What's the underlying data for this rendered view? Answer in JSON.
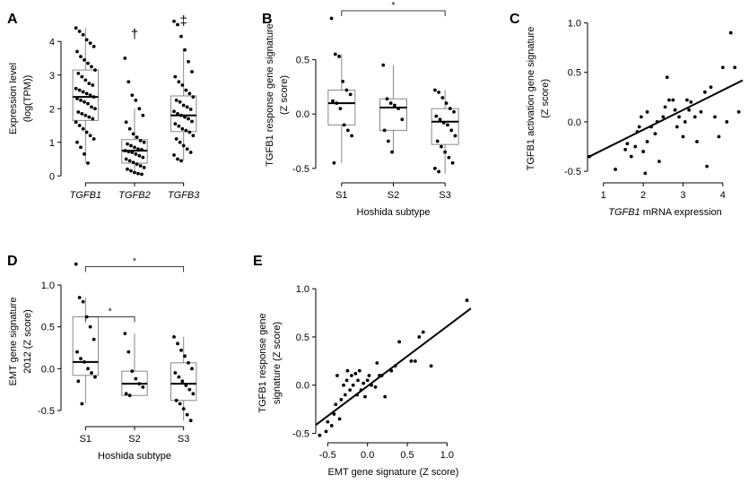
{
  "chart_data": [
    {
      "panel": "A",
      "type": "box",
      "ylabel": "Expression level (log(TPM))",
      "ylabel_lines": [
        "Expression level",
        "(log(TPM))"
      ],
      "yticks": [
        0,
        1,
        2,
        3,
        4
      ],
      "ylim": [
        -0.1,
        4.7
      ],
      "categories": [
        "TGFB1",
        "TGFB2",
        "TGFB3"
      ],
      "category_style": "italic",
      "boxes": [
        {
          "name": "TGFB1",
          "q1": 1.65,
          "median": 2.35,
          "q3": 3.15,
          "whisker_low": 0.38,
          "whisker_high": 4.4,
          "points": [
            4.4,
            4.3,
            4.2,
            4.05,
            3.95,
            3.85,
            3.7,
            3.55,
            3.45,
            3.35,
            3.25,
            3.15,
            3.05,
            2.95,
            2.85,
            2.75,
            2.7,
            2.6,
            2.55,
            2.5,
            2.45,
            2.4,
            2.35,
            2.3,
            2.25,
            2.2,
            2.15,
            2.05,
            2.0,
            1.9,
            1.85,
            1.8,
            1.75,
            1.7,
            1.6,
            1.5,
            1.4,
            1.3,
            1.2,
            1.1,
            1.0,
            0.85,
            0.65,
            0.38
          ]
        },
        {
          "name": "TGFB2",
          "q1": 0.38,
          "median": 0.75,
          "q3": 1.08,
          "whisker_low": 0.05,
          "whisker_high": 2.0,
          "points": [
            3.5,
            2.8,
            2.4,
            2.25,
            2.0,
            1.8,
            1.6,
            1.4,
            1.25,
            1.15,
            1.05,
            1.0,
            0.95,
            0.9,
            0.85,
            0.8,
            0.78,
            0.75,
            0.72,
            0.7,
            0.65,
            0.6,
            0.55,
            0.5,
            0.45,
            0.4,
            0.35,
            0.3,
            0.25,
            0.2,
            0.15,
            0.1,
            0.07,
            0.05
          ]
        },
        {
          "name": "TGFB3",
          "q1": 1.32,
          "median": 1.8,
          "q3": 2.38,
          "whisker_low": 0.45,
          "whisker_high": 3.75,
          "points": [
            4.6,
            4.5,
            4.15,
            3.75,
            3.4,
            3.1,
            2.95,
            2.8,
            2.7,
            2.55,
            2.45,
            2.35,
            2.25,
            2.2,
            2.1,
            2.05,
            1.98,
            1.92,
            1.85,
            1.8,
            1.75,
            1.7,
            1.62,
            1.55,
            1.48,
            1.4,
            1.35,
            1.3,
            1.2,
            1.1,
            1.0,
            0.9,
            0.8,
            0.7,
            0.62,
            0.5,
            0.45
          ]
        }
      ],
      "annotations": [
        {
          "category": "TGFB2",
          "text": "†",
          "value": 4.25
        },
        {
          "category": "TGFB3",
          "text": "‡",
          "value": 4.65
        }
      ]
    },
    {
      "panel": "B",
      "type": "box",
      "ylabel": "TGFB1 response gene signature (Z score)",
      "ylabel_lines": [
        "TGFB1 response gene signature",
        "(Z score)"
      ],
      "xlabel": "Hoshida subtype",
      "yticks": [
        -0.5,
        0.0,
        0.5
      ],
      "ytick_labels": [
        "-0.5",
        "0.0",
        "0.5"
      ],
      "ylim": [
        -0.6,
        0.95
      ],
      "categories": [
        "S1",
        "S2",
        "S3"
      ],
      "boxes": [
        {
          "name": "S1",
          "q1": -0.1,
          "median": 0.1,
          "q3": 0.22,
          "whisker_low": -0.45,
          "whisker_high": 0.55,
          "points": [
            0.88,
            0.55,
            0.53,
            0.3,
            0.22,
            0.18,
            0.12,
            0.1,
            0.05,
            -0.1,
            -0.15,
            -0.2,
            -0.45
          ]
        },
        {
          "name": "S2",
          "q1": -0.15,
          "median": 0.06,
          "q3": 0.14,
          "whisker_low": -0.35,
          "whisker_high": 0.45,
          "points": [
            0.45,
            0.14,
            0.1,
            0.08,
            0.05,
            -0.05,
            -0.15,
            -0.25,
            -0.35
          ]
        },
        {
          "name": "S3",
          "q1": -0.28,
          "median": -0.07,
          "q3": 0.05,
          "whisker_low": -0.55,
          "whisker_high": 0.22,
          "points": [
            0.22,
            0.2,
            0.15,
            0.1,
            0.05,
            0.02,
            -0.02,
            -0.05,
            -0.08,
            -0.1,
            -0.15,
            -0.2,
            -0.25,
            -0.3,
            -0.35,
            -0.4,
            -0.45,
            -0.5,
            -0.53
          ]
        }
      ],
      "brackets": [
        {
          "from": "S1",
          "to": "S3",
          "label": "*",
          "value": 0.95
        }
      ]
    },
    {
      "panel": "C",
      "type": "scatter",
      "ylabel": "TGFB1 activation gene signature (Z score)",
      "ylabel_lines": [
        "TGFB1 activation gene signature",
        "(Z score)"
      ],
      "xlabel": "TGFB1 mRNA expression",
      "xlabel_italic_part": "TGFB1",
      "xlabel_rest": " mRNA expression",
      "xticks": [
        1,
        2,
        3,
        4
      ],
      "yticks": [
        -0.5,
        0.0,
        0.5,
        1.0
      ],
      "ytick_labels": [
        "-0.5",
        "0.0",
        "0.5",
        "1.0"
      ],
      "xlim": [
        0.6,
        4.5
      ],
      "ylim": [
        -0.58,
        1.05
      ],
      "points": [
        [
          0.65,
          -0.35
        ],
        [
          1.3,
          -0.48
        ],
        [
          1.55,
          -0.28
        ],
        [
          1.6,
          -0.22
        ],
        [
          1.7,
          -0.35
        ],
        [
          1.8,
          -0.25
        ],
        [
          1.85,
          -0.1
        ],
        [
          1.9,
          -0.05
        ],
        [
          1.95,
          0.05
        ],
        [
          2.0,
          -0.3
        ],
        [
          2.05,
          -0.52
        ],
        [
          2.1,
          0.1
        ],
        [
          2.1,
          -0.2
        ],
        [
          2.2,
          -0.05
        ],
        [
          2.3,
          -0.12
        ],
        [
          2.35,
          0.0
        ],
        [
          2.4,
          -0.4
        ],
        [
          2.5,
          0.05
        ],
        [
          2.55,
          0.15
        ],
        [
          2.6,
          0.45
        ],
        [
          2.65,
          0.22
        ],
        [
          2.75,
          0.22
        ],
        [
          2.8,
          0.12
        ],
        [
          2.85,
          -0.05
        ],
        [
          2.9,
          0.05
        ],
        [
          3.0,
          -0.15
        ],
        [
          3.05,
          0.0
        ],
        [
          3.1,
          0.22
        ],
        [
          3.15,
          0.12
        ],
        [
          3.2,
          0.2
        ],
        [
          3.3,
          0.05
        ],
        [
          3.35,
          -0.2
        ],
        [
          3.45,
          0.1
        ],
        [
          3.55,
          0.3
        ],
        [
          3.6,
          -0.45
        ],
        [
          3.7,
          0.35
        ],
        [
          3.8,
          0.05
        ],
        [
          3.9,
          -0.15
        ],
        [
          4.0,
          0.55
        ],
        [
          4.1,
          0.0
        ],
        [
          4.2,
          0.9
        ],
        [
          4.3,
          0.55
        ],
        [
          4.4,
          0.1
        ]
      ],
      "fit": {
        "slope": 0.2,
        "intercept": -0.48
      }
    },
    {
      "panel": "D",
      "type": "box",
      "ylabel": "EMT gene signature 2012 (Z score)",
      "ylabel_lines": [
        "EMT gene signature",
        "2012 (Z score)"
      ],
      "xlabel": "Hoshida subtype",
      "yticks": [
        -0.5,
        0.0,
        0.5,
        1.0
      ],
      "ytick_labels": [
        "-0.5",
        "0.0",
        "0.5",
        "1.0"
      ],
      "ylim": [
        -0.65,
        1.3
      ],
      "categories": [
        "S1",
        "S2",
        "S3"
      ],
      "boxes": [
        {
          "name": "S1",
          "q1": -0.08,
          "median": 0.08,
          "q3": 0.62,
          "whisker_low": -0.42,
          "whisker_high": 0.85,
          "points": [
            1.25,
            0.85,
            0.8,
            0.62,
            0.5,
            0.35,
            0.2,
            0.12,
            0.08,
            0.0,
            -0.05,
            -0.1,
            -0.15,
            -0.42
          ]
        },
        {
          "name": "S2",
          "q1": -0.32,
          "median": -0.18,
          "q3": -0.03,
          "whisker_low": -0.32,
          "whisker_high": 0.42,
          "points": [
            0.42,
            0.2,
            -0.03,
            -0.12,
            -0.18,
            -0.22,
            -0.3,
            -0.32
          ]
        },
        {
          "name": "S3",
          "q1": -0.38,
          "median": -0.18,
          "q3": 0.07,
          "whisker_low": -0.62,
          "whisker_high": 0.38,
          "points": [
            0.38,
            0.3,
            0.22,
            0.15,
            0.07,
            0.0,
            -0.05,
            -0.1,
            -0.15,
            -0.2,
            -0.25,
            -0.3,
            -0.38,
            -0.42,
            -0.48,
            -0.55,
            -0.62
          ]
        }
      ],
      "brackets": [
        {
          "from": "S1",
          "to": "S2",
          "label": "*",
          "value": 0.62
        },
        {
          "from": "S1",
          "to": "S3",
          "label": "*",
          "value": 1.22
        }
      ]
    },
    {
      "panel": "E",
      "type": "scatter",
      "ylabel": "TGFB1 response gene signature (Z score)",
      "ylabel_lines": [
        "TGFB1 response gene",
        "signature (Z score)"
      ],
      "xlabel": "EMT gene signature (Z score)",
      "xticks": [
        -0.5,
        0.0,
        0.5,
        1.0
      ],
      "xtick_labels": [
        "-0.5",
        "0.0",
        "0.5",
        "1.0"
      ],
      "yticks": [
        -0.5,
        0.0,
        0.5,
        1.0
      ],
      "ytick_labels": [
        "-0.5",
        "0.0",
        "0.5",
        "1.0"
      ],
      "xlim": [
        -0.65,
        1.3
      ],
      "ylim": [
        -0.56,
        1.02
      ],
      "points": [
        [
          -0.6,
          -0.52
        ],
        [
          -0.52,
          -0.48
        ],
        [
          -0.5,
          -0.38
        ],
        [
          -0.45,
          -0.42
        ],
        [
          -0.42,
          -0.3
        ],
        [
          -0.4,
          -0.2
        ],
        [
          -0.38,
          0.1
        ],
        [
          -0.35,
          -0.35
        ],
        [
          -0.33,
          -0.15
        ],
        [
          -0.3,
          0.0
        ],
        [
          -0.28,
          -0.1
        ],
        [
          -0.26,
          0.05
        ],
        [
          -0.25,
          0.15
        ],
        [
          -0.22,
          -0.05
        ],
        [
          -0.2,
          0.1
        ],
        [
          -0.18,
          0.0
        ],
        [
          -0.15,
          0.12
        ],
        [
          -0.13,
          -0.1
        ],
        [
          -0.12,
          0.05
        ],
        [
          -0.1,
          0.15
        ],
        [
          -0.08,
          -0.05
        ],
        [
          -0.05,
          0.02
        ],
        [
          -0.03,
          -0.12
        ],
        [
          0.0,
          0.05
        ],
        [
          0.02,
          0.1
        ],
        [
          0.05,
          0.0
        ],
        [
          0.1,
          -0.02
        ],
        [
          0.12,
          0.23
        ],
        [
          0.15,
          0.1
        ],
        [
          0.18,
          0.1
        ],
        [
          0.22,
          -0.12
        ],
        [
          0.3,
          0.15
        ],
        [
          0.35,
          0.2
        ],
        [
          0.4,
          0.45
        ],
        [
          0.55,
          0.25
        ],
        [
          0.6,
          0.25
        ],
        [
          0.65,
          0.5
        ],
        [
          0.7,
          0.55
        ],
        [
          0.8,
          0.2
        ],
        [
          1.25,
          0.88
        ]
      ],
      "fit": {
        "slope": 0.62,
        "intercept": -0.01
      }
    }
  ]
}
